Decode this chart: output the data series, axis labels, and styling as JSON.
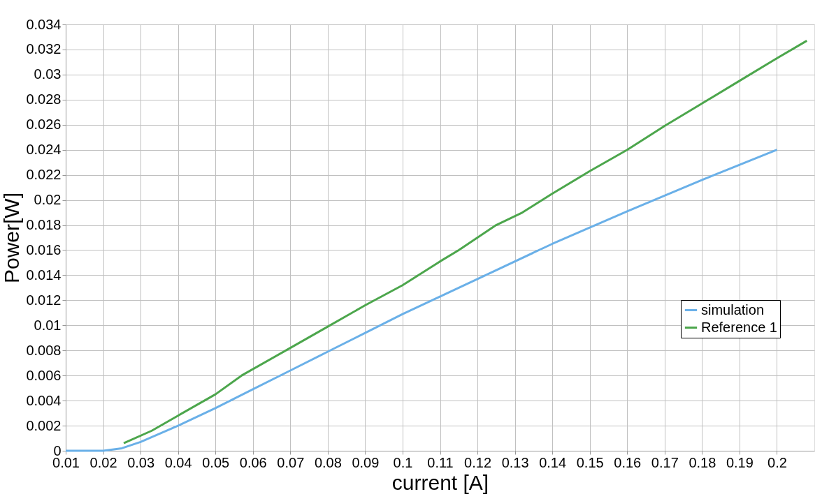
{
  "chart_data": {
    "type": "line",
    "xlabel": "current [A]",
    "ylabel": "Power[W]",
    "xlim": [
      0.01,
      0.21
    ],
    "xticks": [
      0.01,
      0.02,
      0.03,
      0.04,
      0.05,
      0.06,
      0.07,
      0.08,
      0.09,
      0.1,
      0.11,
      0.12,
      0.13,
      0.14,
      0.15,
      0.16,
      0.17,
      0.18,
      0.19,
      0.2
    ],
    "ylim": [
      0,
      0.034
    ],
    "yticks": [
      0,
      0.002,
      0.004,
      0.006,
      0.008,
      0.01,
      0.012,
      0.014,
      0.016,
      0.018,
      0.02,
      0.022,
      0.024,
      0.026,
      0.028,
      0.03,
      0.032,
      0.034
    ],
    "grid": true,
    "legend": "right",
    "marker": "none",
    "line_style": "solid",
    "series": [
      {
        "name": "simulation",
        "color": "#6ab0e8",
        "x": [
          0.01,
          0.02,
          0.025,
          0.03,
          0.04,
          0.05,
          0.06,
          0.07,
          0.08,
          0.09,
          0.1,
          0.12,
          0.14,
          0.16,
          0.18,
          0.2
        ],
        "values": [
          0,
          0,
          0.0002,
          0.0007,
          0.002,
          0.0034,
          0.0049,
          0.0064,
          0.0079,
          0.0094,
          0.0109,
          0.0137,
          0.0165,
          0.0191,
          0.0216,
          0.024
        ]
      },
      {
        "name": "Reference 1",
        "color": "#4ca64c",
        "x": [
          0.0255,
          0.033,
          0.04,
          0.05,
          0.057,
          0.07,
          0.08,
          0.09,
          0.1,
          0.11,
          0.115,
          0.125,
          0.132,
          0.14,
          0.15,
          0.16,
          0.17,
          0.18,
          0.19,
          0.2,
          0.208
        ],
        "values": [
          0.0006,
          0.0016,
          0.0028,
          0.0045,
          0.006,
          0.0082,
          0.0099,
          0.0116,
          0.0132,
          0.0151,
          0.016,
          0.018,
          0.019,
          0.0205,
          0.0223,
          0.024,
          0.0259,
          0.0277,
          0.0295,
          0.0313,
          0.0327
        ]
      }
    ]
  }
}
